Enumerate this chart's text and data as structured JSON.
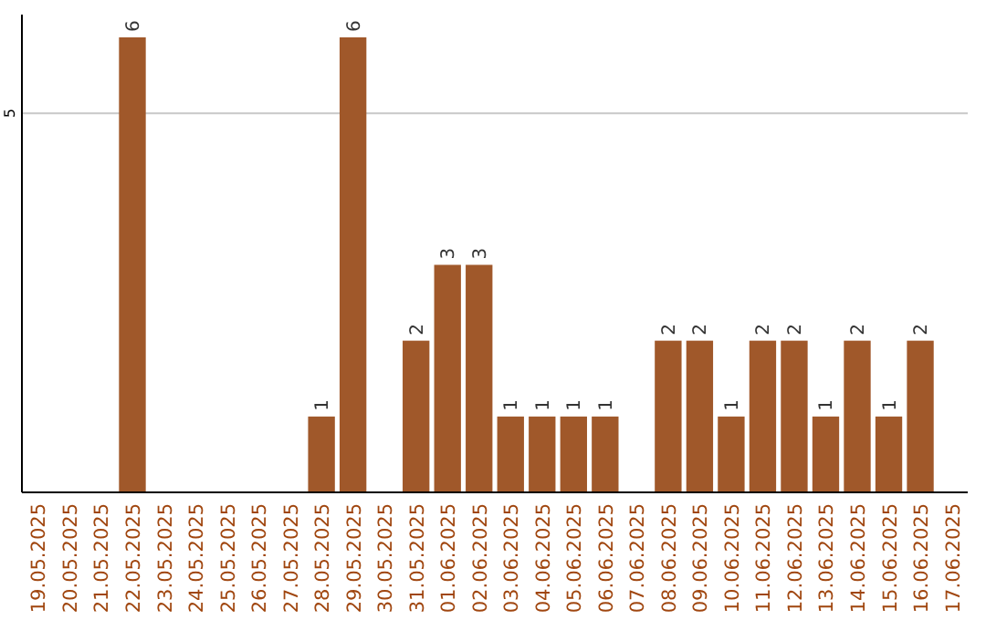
{
  "chart_data": {
    "type": "bar",
    "categories": [
      "19.05.2025",
      "20.05.2025",
      "21.05.2025",
      "22.05.2025",
      "23.05.2025",
      "24.05.2025",
      "25.05.2025",
      "26.05.2025",
      "27.05.2025",
      "28.05.2025",
      "29.05.2025",
      "30.05.2025",
      "31.05.2025",
      "01.06.2025",
      "02.06.2025",
      "03.06.2025",
      "04.06.2025",
      "05.06.2025",
      "06.06.2025",
      "07.06.2025",
      "08.06.2025",
      "09.06.2025",
      "10.06.2025",
      "11.06.2025",
      "12.06.2025",
      "13.06.2025",
      "14.06.2025",
      "15.06.2025",
      "16.06.2025",
      "17.06.2025"
    ],
    "values": [
      null,
      null,
      null,
      6,
      null,
      null,
      null,
      null,
      null,
      1,
      6,
      null,
      2,
      3,
      3,
      1,
      1,
      1,
      1,
      null,
      2,
      2,
      1,
      2,
      2,
      1,
      2,
      1,
      2,
      null
    ],
    "color": "#a0582a",
    "ylim": [
      0,
      6.3
    ],
    "yticks": [
      5
    ],
    "grid": "y",
    "data_labels": true
  }
}
